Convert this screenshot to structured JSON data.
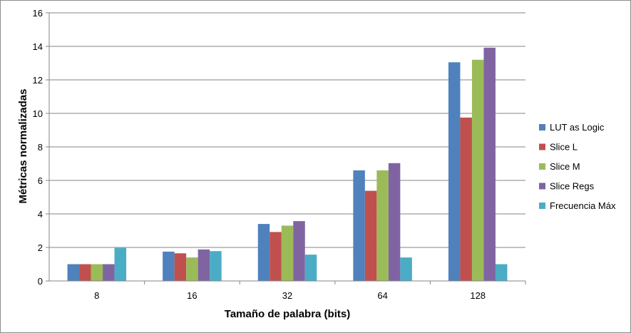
{
  "chart_data": {
    "type": "bar",
    "title": "",
    "xlabel": "Tamaño de palabra (bits)",
    "ylabel": "Métricas normalizadas",
    "ylim": [
      0,
      16
    ],
    "yticks": [
      0,
      2,
      4,
      6,
      8,
      10,
      12,
      14,
      16
    ],
    "grid": true,
    "legend_position": "right",
    "categories": [
      "8",
      "16",
      "32",
      "64",
      "128"
    ],
    "series": [
      {
        "name": "LUT as Logic",
        "color": "#4f81bd",
        "values": [
          1.0,
          1.75,
          3.4,
          6.6,
          13.05
        ]
      },
      {
        "name": "Slice L",
        "color": "#c0504d",
        "values": [
          1.0,
          1.65,
          2.92,
          5.38,
          9.75
        ]
      },
      {
        "name": "Slice M",
        "color": "#9bbb59",
        "values": [
          1.0,
          1.4,
          3.3,
          6.6,
          13.2
        ]
      },
      {
        "name": "Slice Regs",
        "color": "#8064a2",
        "values": [
          1.0,
          1.88,
          3.57,
          7.03,
          13.92
        ]
      },
      {
        "name": "Frecuencia Máx",
        "color": "#4bacc6",
        "values": [
          1.97,
          1.78,
          1.57,
          1.4,
          1.0
        ]
      }
    ]
  }
}
